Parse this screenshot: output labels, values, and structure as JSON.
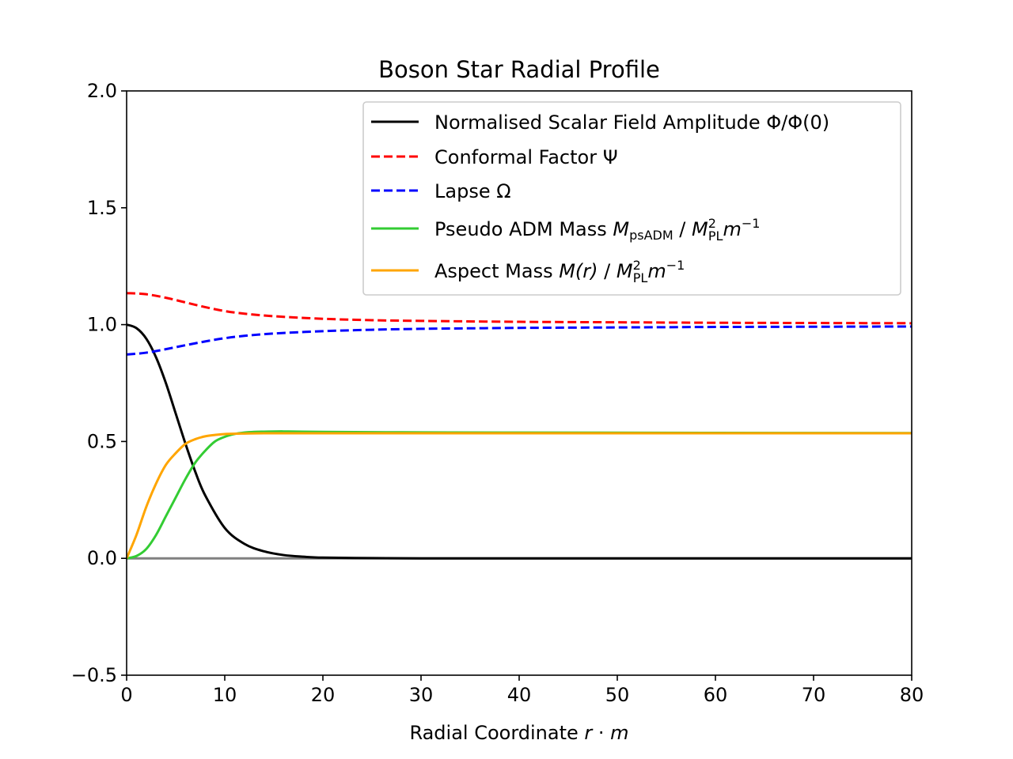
{
  "chart_data": {
    "type": "line",
    "title": "Boson Star Radial Profile",
    "xlabel": "Radial Coordinate r · m",
    "ylabel": "",
    "xlim": [
      0,
      80
    ],
    "ylim": [
      -0.5,
      2.0
    ],
    "x_ticks": [
      "0",
      "10",
      "20",
      "30",
      "40",
      "50",
      "60",
      "70",
      "80"
    ],
    "y_ticks": [
      "−0.5",
      "0.0",
      "0.5",
      "1.0",
      "1.5",
      "2.0"
    ],
    "grid": false,
    "legend_position": "top-right",
    "baseline": {
      "y": 0.0,
      "color": "#808080"
    },
    "series": [
      {
        "name": "Normalised Scalar Field Amplitude Φ/Φ(0)",
        "color": "#000000",
        "dash": "solid",
        "x": [
          0,
          1,
          2,
          3,
          4,
          5,
          6,
          7,
          8,
          10,
          12,
          14,
          16,
          18,
          20,
          25,
          30,
          40,
          50,
          60,
          70,
          80
        ],
        "y": [
          1.0,
          0.985,
          0.94,
          0.86,
          0.75,
          0.62,
          0.49,
          0.37,
          0.27,
          0.13,
          0.062,
          0.03,
          0.014,
          0.007,
          0.003,
          0.001,
          0.0,
          0.0,
          0.0,
          0.0,
          0.0,
          0.0
        ]
      },
      {
        "name": "Conformal Factor Ψ",
        "color": "#ff0000",
        "dash": "dashed",
        "x": [
          0,
          2,
          4,
          6,
          8,
          10,
          12,
          15,
          20,
          25,
          30,
          40,
          50,
          60,
          70,
          80
        ],
        "y": [
          1.135,
          1.13,
          1.115,
          1.095,
          1.075,
          1.058,
          1.047,
          1.036,
          1.025,
          1.019,
          1.016,
          1.012,
          1.01,
          1.008,
          1.007,
          1.006
        ]
      },
      {
        "name": "Lapse Ω",
        "color": "#0000ff",
        "dash": "dashed",
        "x": [
          0,
          2,
          4,
          6,
          8,
          10,
          12,
          15,
          20,
          25,
          30,
          40,
          50,
          60,
          70,
          80
        ],
        "y": [
          0.872,
          0.88,
          0.895,
          0.912,
          0.928,
          0.942,
          0.952,
          0.962,
          0.972,
          0.978,
          0.982,
          0.986,
          0.988,
          0.99,
          0.991,
          0.992
        ]
      },
      {
        "name": "Pseudo ADM Mass M_psADM / M_PL^2 m^-1",
        "label_parts": {
          "prefix": "Pseudo ADM Mass ",
          "M": "M",
          "sub": "psADM",
          "slash": " / ",
          "M2": "M",
          "sup2": "2",
          "sub2": "PL",
          "m": "m",
          "supm": "−1"
        },
        "color": "#33cc33",
        "dash": "solid",
        "x": [
          0,
          1,
          2,
          3,
          4,
          5,
          6,
          7,
          8,
          9,
          10,
          11,
          12,
          13,
          14,
          16,
          20,
          30,
          40,
          60,
          80
        ],
        "y": [
          0.0,
          0.01,
          0.04,
          0.1,
          0.18,
          0.26,
          0.34,
          0.41,
          0.46,
          0.5,
          0.52,
          0.532,
          0.538,
          0.541,
          0.542,
          0.543,
          0.541,
          0.539,
          0.538,
          0.537,
          0.536
        ]
      },
      {
        "name": "Aspect Mass M(r) / M_PL^2 m^-1",
        "label_parts": {
          "prefix": "Aspect Mass ",
          "M": "M(r)",
          "slash": " / ",
          "M2": "M",
          "sup2": "2",
          "sub2": "PL",
          "m": "m",
          "supm": "−1"
        },
        "color": "#ffa500",
        "dash": "solid",
        "x": [
          0,
          1,
          2,
          3,
          4,
          5,
          6,
          7,
          8,
          9,
          10,
          12,
          14,
          20,
          30,
          40,
          60,
          80
        ],
        "y": [
          0.0,
          0.1,
          0.22,
          0.32,
          0.4,
          0.45,
          0.49,
          0.51,
          0.522,
          0.528,
          0.532,
          0.534,
          0.535,
          0.535,
          0.535,
          0.535,
          0.535,
          0.535
        ]
      }
    ]
  }
}
